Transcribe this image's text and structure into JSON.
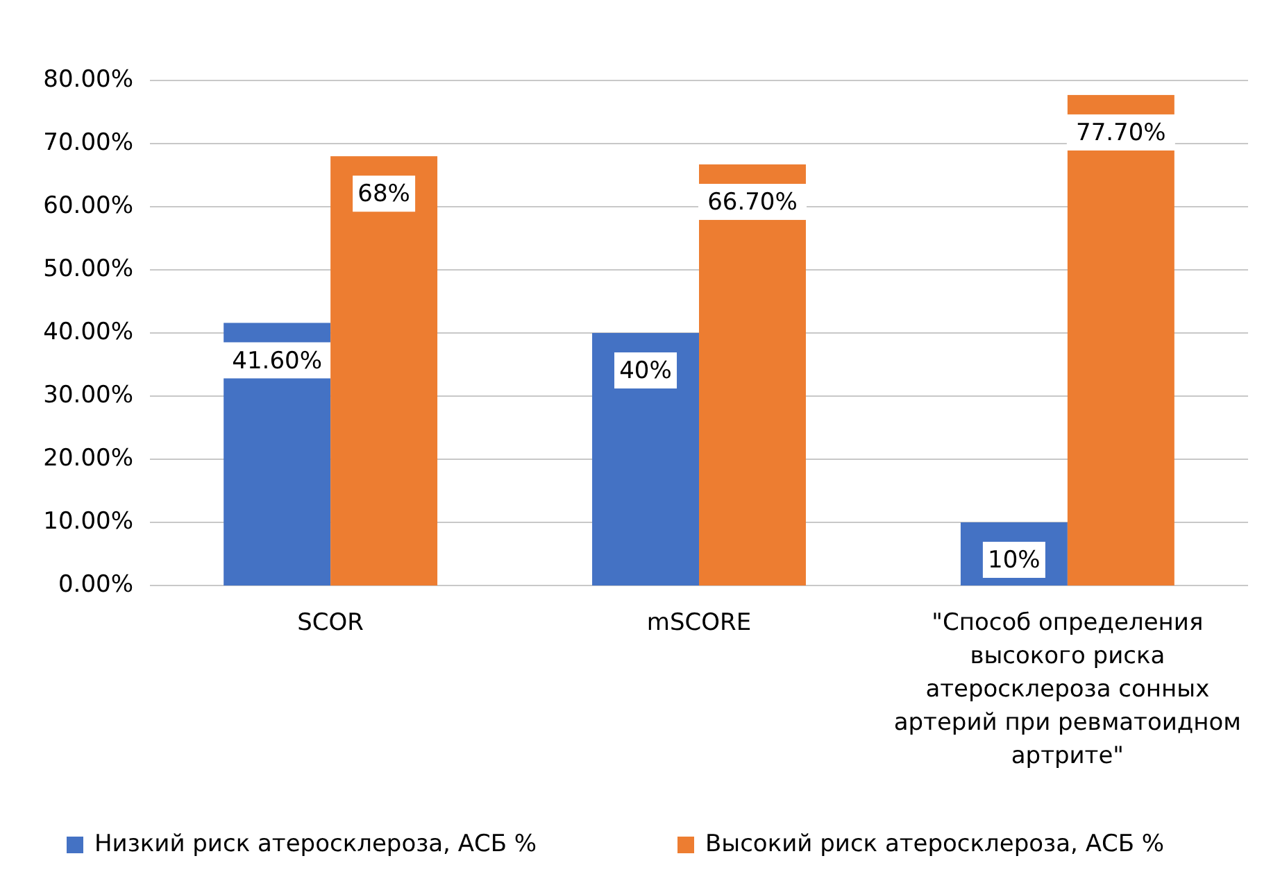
{
  "chart_data": {
    "type": "bar",
    "categories": [
      "SCOR",
      "mSCORE",
      "\"Способ определения высокого риска атеросклероза сонных артерий при ревматоидном артрите\""
    ],
    "series": [
      {
        "name": "Низкий риск атеросклероза, АСБ %",
        "color": "#4472c4",
        "values": [
          41.6,
          40,
          10
        ],
        "value_labels": [
          "41.60%",
          "40%",
          "10%"
        ]
      },
      {
        "name": "Высокий риск атеросклероза, АСБ %",
        "color": "#ed7d31",
        "values": [
          68,
          66.7,
          77.7
        ],
        "value_labels": [
          "68%",
          "66.70%",
          "77.70%"
        ]
      }
    ],
    "ylim": [
      0,
      80
    ],
    "yticks": [
      {
        "value": 0,
        "label": "0.00%"
      },
      {
        "value": 10,
        "label": "10.00%"
      },
      {
        "value": 20,
        "label": "20.00%"
      },
      {
        "value": 30,
        "label": "30.00%"
      },
      {
        "value": 40,
        "label": "40.00%"
      },
      {
        "value": 50,
        "label": "50.00%"
      },
      {
        "value": 60,
        "label": "60.00%"
      },
      {
        "value": 70,
        "label": "70.00%"
      },
      {
        "value": 80,
        "label": "80.00%"
      }
    ],
    "grid": true,
    "legend": "bottom"
  }
}
